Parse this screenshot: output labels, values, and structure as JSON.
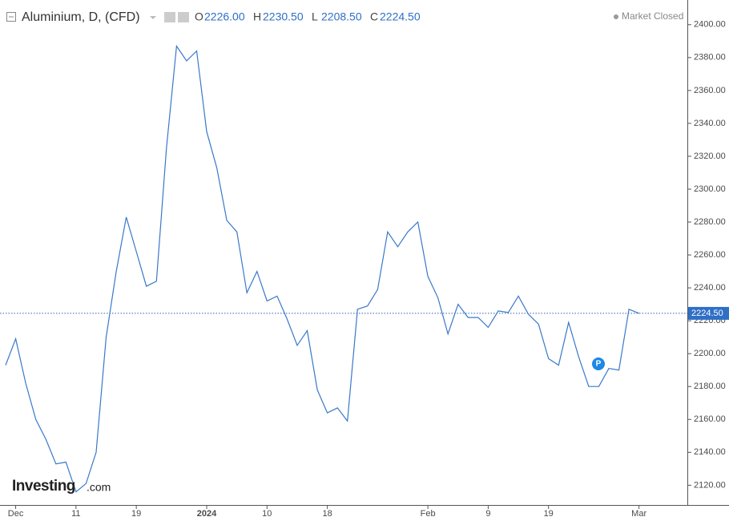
{
  "chart_data": {
    "type": "line",
    "title": "Aluminium, D, (CFD)",
    "ohlc": [
      {
        "label": "O",
        "value": "2226.00"
      },
      {
        "label": "H",
        "value": "2230.50"
      },
      {
        "label": "L",
        "value": "2208.50"
      },
      {
        "label": "C",
        "value": "2224.50"
      }
    ],
    "status": "Market Closed",
    "brand": "Investing",
    "brand_suffix": ".com",
    "annotation": "P",
    "categories": [
      null,
      "Dec",
      null,
      null,
      null,
      null,
      null,
      "11",
      null,
      null,
      null,
      null,
      null,
      "19",
      null,
      null,
      null,
      null,
      null,
      null,
      "2024",
      null,
      null,
      null,
      null,
      null,
      "10",
      null,
      null,
      null,
      null,
      null,
      "18",
      null,
      null,
      null,
      null,
      null,
      null,
      null,
      null,
      null,
      "Feb",
      null,
      null,
      null,
      null,
      null,
      "9",
      null,
      null,
      null,
      null,
      null,
      "19",
      null,
      null,
      null,
      null,
      null,
      null,
      null,
      null,
      "Mar"
    ],
    "series": [
      {
        "name": "Aluminium",
        "color": "#3a78c9",
        "values": [
          2193,
          2209,
          2182,
          2160,
          2148,
          2133,
          2134,
          2116,
          2121,
          2140,
          2210,
          2250,
          2283,
          2262,
          2241,
          2244,
          2325,
          2387,
          2378,
          2384,
          2335,
          2313,
          2281,
          2274,
          2237,
          2250,
          2232,
          2235,
          2221,
          2205,
          2214,
          2178,
          2164,
          2167,
          2159,
          2227,
          2229,
          2239,
          2274,
          2265,
          2274,
          2280,
          2247,
          2234,
          2212,
          2230,
          2222,
          2222,
          2216,
          2226,
          2225,
          2235,
          2224,
          2218,
          2197,
          2193,
          2219,
          2198,
          2180,
          2180,
          2191,
          2190,
          2227,
          2224.5
        ]
      }
    ],
    "last_value": 2224.5,
    "last_value_label": "2224.50",
    "ylim": [
      2108,
      2415
    ],
    "yticks": [
      {
        "value": 2120,
        "label": "2120.00"
      },
      {
        "value": 2140,
        "label": "2140.00"
      },
      {
        "value": 2160,
        "label": "2160.00"
      },
      {
        "value": 2180,
        "label": "2180.00"
      },
      {
        "value": 2200,
        "label": "2200.00"
      },
      {
        "value": 2220,
        "label": "2220.00"
      },
      {
        "value": 2240,
        "label": "2240.00"
      },
      {
        "value": 2260,
        "label": "2260.00"
      },
      {
        "value": 2280,
        "label": "2280.00"
      },
      {
        "value": 2300,
        "label": "2300.00"
      },
      {
        "value": 2320,
        "label": "2320.00"
      },
      {
        "value": 2340,
        "label": "2340.00"
      },
      {
        "value": 2360,
        "label": "2360.00"
      },
      {
        "value": 2380,
        "label": "2380.00"
      },
      {
        "value": 2400,
        "label": "2400.00"
      }
    ],
    "grid": false
  }
}
